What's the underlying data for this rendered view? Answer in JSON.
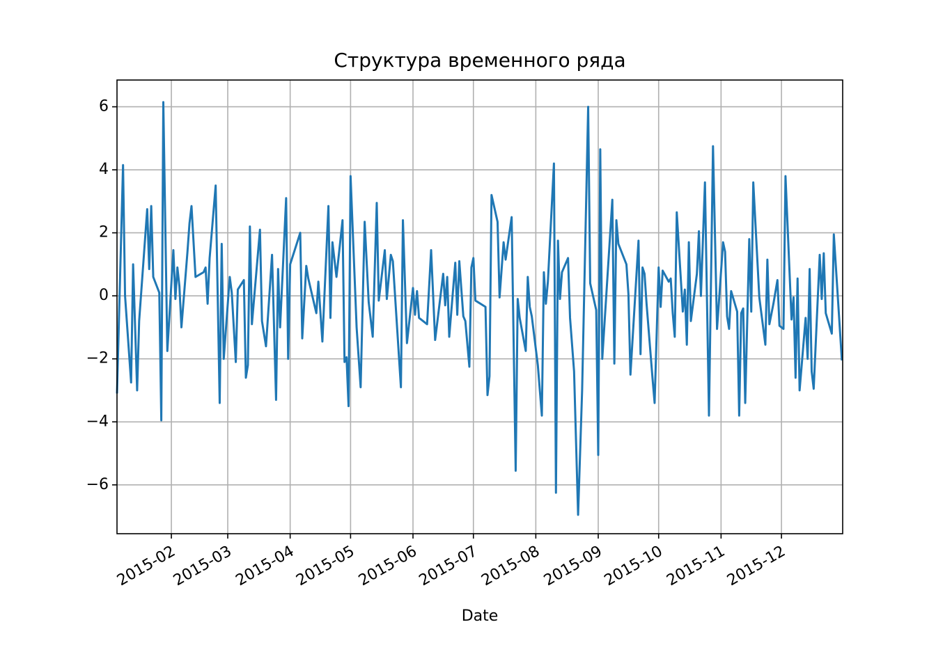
{
  "chart_data": {
    "type": "line",
    "title": "Структура временного ряда",
    "x_label": "Date",
    "x": [
      5,
      8,
      9,
      12,
      13,
      15,
      16,
      20,
      21,
      22,
      23,
      26,
      27,
      28,
      30,
      33,
      34,
      35,
      36,
      37,
      40,
      41,
      42,
      44,
      48,
      49,
      50,
      51,
      54,
      56,
      57,
      58,
      61,
      62,
      64,
      65,
      68,
      69,
      70,
      71,
      72,
      76,
      77,
      79,
      82,
      84,
      85,
      86,
      89,
      90,
      91,
      96,
      97,
      99,
      100,
      104,
      105,
      107,
      110,
      111,
      112,
      114,
      117,
      118,
      119,
      120,
      121,
      124,
      126,
      128,
      130,
      132,
      134,
      135,
      138,
      139,
      141,
      142,
      146,
      147,
      149,
      152,
      153,
      154,
      155,
      159,
      161,
      163,
      167,
      168,
      169,
      170,
      173,
      174,
      175,
      177,
      178,
      180,
      181,
      182,
      183,
      188,
      189,
      190,
      191,
      194,
      195,
      197,
      198,
      201,
      203,
      204,
      205,
      208,
      209,
      210,
      211,
      214,
      216,
      217,
      218,
      219,
      222,
      223,
      224,
      225,
      226,
      229,
      230,
      232,
      234,
      236,
      239,
      240,
      243,
      244,
      245,
      246,
      251,
      252,
      253,
      254,
      258,
      259,
      260,
      264,
      265,
      266,
      267,
      268,
      271,
      272,
      274,
      275,
      276,
      279,
      280,
      281,
      282,
      283,
      286,
      287,
      288,
      289,
      290,
      293,
      294,
      295,
      297,
      299,
      301,
      303,
      306,
      307,
      308,
      309,
      310,
      313,
      314,
      315,
      316,
      317,
      319,
      320,
      321,
      324,
      327,
      328,
      329,
      331,
      333,
      334,
      336,
      337,
      340,
      341,
      342,
      343,
      344,
      347,
      348,
      349,
      350,
      351,
      354,
      355,
      356,
      357,
      360,
      361,
      365
    ],
    "series": [
      {
        "color": "#1f77b4",
        "values": [
          -3.1,
          4.15,
          0,
          -2.75,
          1.0,
          -3.0,
          -0.8,
          2.75,
          0.85,
          2.85,
          0.6,
          0.1,
          -3.95,
          6.15,
          -1.75,
          1.45,
          -0.1,
          0.9,
          0.3,
          -1.0,
          1.4,
          2.3,
          2.85,
          0.6,
          0.75,
          0.9,
          -0.25,
          1.2,
          3.5,
          -3.4,
          1.65,
          -2.0,
          0.6,
          0.1,
          -2.1,
          0.2,
          0.5,
          -2.6,
          -2.2,
          2.2,
          -0.9,
          2.1,
          -0.8,
          -1.6,
          1.3,
          -3.3,
          0.85,
          -1.0,
          3.1,
          -2.0,
          1.0,
          2.0,
          -1.35,
          0.95,
          0.55,
          -0.55,
          0.45,
          -1.45,
          2.85,
          -0.7,
          1.7,
          0.6,
          2.4,
          -2.1,
          -1.95,
          -3.5,
          3.8,
          -1.0,
          -2.9,
          2.35,
          -0.2,
          -1.3,
          2.95,
          -0.15,
          1.45,
          -0.1,
          1.3,
          1.1,
          -2.9,
          2.4,
          -1.5,
          0.25,
          -0.6,
          0.15,
          -0.7,
          -0.9,
          1.45,
          -1.4,
          0.7,
          -0.3,
          0.6,
          -1.3,
          1.05,
          -0.6,
          1.1,
          -0.65,
          -0.8,
          -2.25,
          0.9,
          1.2,
          -0.15,
          -0.35,
          -3.15,
          -2.55,
          3.2,
          2.35,
          -0.05,
          1.7,
          1.15,
          2.5,
          -5.55,
          -0.1,
          -0.7,
          -1.75,
          0.6,
          -0.35,
          -0.65,
          -2.2,
          -3.8,
          0.75,
          -0.25,
          0.45,
          4.2,
          -6.25,
          1.75,
          -0.1,
          0.75,
          1.2,
          -0.7,
          -2.4,
          -6.95,
          -3.0,
          6.0,
          0.4,
          -0.45,
          -5.05,
          4.65,
          -2.0,
          3.05,
          -2.15,
          2.4,
          1.65,
          1.0,
          0.05,
          -2.5,
          1.75,
          -1.85,
          0.9,
          0.7,
          -0.25,
          -2.65,
          -3.4,
          0.9,
          -0.35,
          0.8,
          0.45,
          0.55,
          -0.55,
          -1.3,
          2.65,
          -0.5,
          0.2,
          -1.55,
          1.7,
          -0.8,
          0.7,
          2.05,
          0.0,
          3.6,
          -3.8,
          4.75,
          -1.05,
          1.7,
          1.4,
          -0.65,
          -1.05,
          0.15,
          -0.5,
          -3.8,
          -0.55,
          -0.4,
          -3.4,
          1.8,
          -0.5,
          3.6,
          -0.05,
          -1.55,
          1.15,
          -0.9,
          -0.25,
          0.5,
          -0.95,
          -1.05,
          3.8,
          -0.75,
          -0.05,
          -2.6,
          0.55,
          -3.0,
          -0.7,
          -2.0,
          0.85,
          -2.4,
          -2.95,
          1.3,
          -0.1,
          1.35,
          -0.55,
          -1.2,
          1.95,
          -2.05
        ]
      }
    ],
    "xlim": [
      5,
      365.4
    ],
    "xticks": [
      {
        "value": 32,
        "label": "2015-02"
      },
      {
        "value": 60,
        "label": "2015-03"
      },
      {
        "value": 91,
        "label": "2015-04"
      },
      {
        "value": 121,
        "label": "2015-05"
      },
      {
        "value": 152,
        "label": "2015-06"
      },
      {
        "value": 182,
        "label": "2015-07"
      },
      {
        "value": 213,
        "label": "2015-08"
      },
      {
        "value": 244,
        "label": "2015-09"
      },
      {
        "value": 274,
        "label": "2015-10"
      },
      {
        "value": 305,
        "label": "2015-11"
      },
      {
        "value": 335,
        "label": "2015-12"
      }
    ],
    "ylim": [
      -7.55,
      6.85
    ],
    "yticks": [
      {
        "value": -6,
        "label": "−6"
      },
      {
        "value": -4,
        "label": "−4"
      },
      {
        "value": -2,
        "label": "−2"
      },
      0,
      2,
      4,
      6
    ],
    "grid": true
  }
}
